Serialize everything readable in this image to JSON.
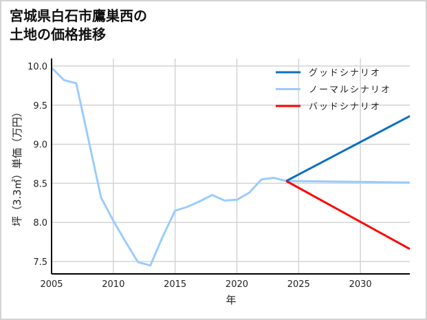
{
  "title_line1": "宮城県白石市鷹巣西の",
  "title_line2": "土地の価格推移",
  "chart_data": {
    "type": "line",
    "title": "宮城県白石市鷹巣西の土地の価格推移",
    "xlabel": "年",
    "ylabel": "坪（3.3㎡）単価（万円）",
    "xlim": [
      2005,
      2034
    ],
    "ylim": [
      7.33,
      10.1
    ],
    "xticks": [
      2005,
      2010,
      2015,
      2020,
      2025,
      2030
    ],
    "yticks": [
      7.5,
      8.0,
      8.5,
      9.0,
      9.5,
      10.0
    ],
    "ytick_labels": [
      "7.5",
      "8.0",
      "8.5",
      "9.0",
      "9.5",
      "10.0"
    ],
    "grid": true,
    "legend_position": "upper right",
    "series": [
      {
        "name": "グッドシナリオ",
        "color": "#0a6fc2",
        "x": [
          2024,
          2034
        ],
        "values": [
          8.53,
          9.36
        ]
      },
      {
        "name": "ノーマルシナリオ",
        "color": "#99ccff",
        "x": [
          2005,
          2006,
          2007,
          2008,
          2009,
          2010,
          2011,
          2012,
          2013,
          2014,
          2015,
          2016,
          2017,
          2018,
          2019,
          2020,
          2021,
          2022,
          2023,
          2024,
          2034
        ],
        "values": [
          9.98,
          9.82,
          9.78,
          9.05,
          8.32,
          8.02,
          7.75,
          7.49,
          7.45,
          7.82,
          8.15,
          8.2,
          8.27,
          8.35,
          8.28,
          8.29,
          8.38,
          8.55,
          8.57,
          8.53,
          8.51
        ]
      },
      {
        "name": "バッドシナリオ",
        "color": "#ff0000",
        "x": [
          2024,
          2034
        ],
        "values": [
          8.53,
          7.66
        ]
      }
    ]
  }
}
